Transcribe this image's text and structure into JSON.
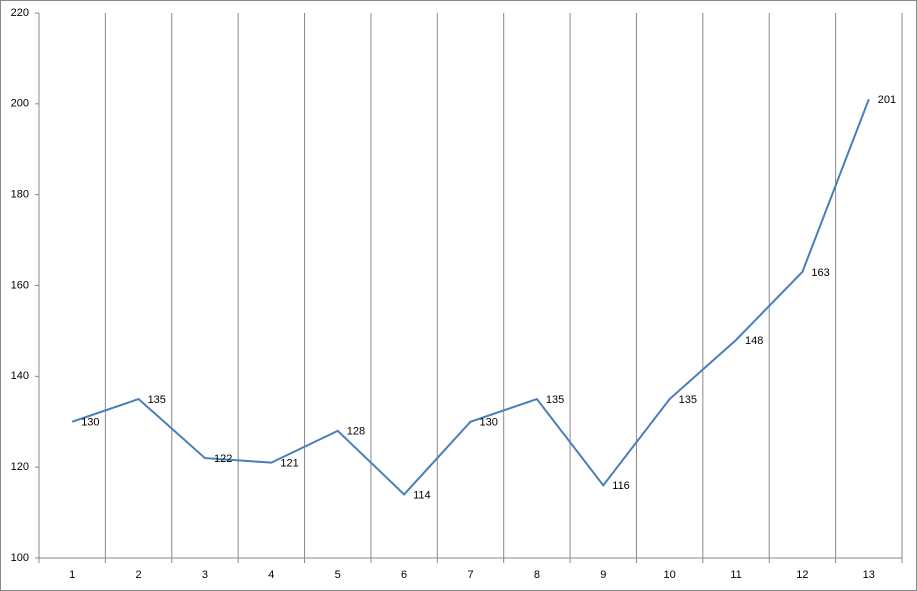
{
  "chart_data": {
    "type": "line",
    "categories": [
      "1",
      "2",
      "3",
      "4",
      "5",
      "6",
      "7",
      "8",
      "9",
      "10",
      "11",
      "12",
      "13"
    ],
    "series": [
      {
        "color": "#4a7ebb",
        "values": [
          130,
          135,
          122,
          121,
          128,
          114,
          130,
          135,
          116,
          135,
          148,
          163,
          201
        ]
      }
    ],
    "ylim": [
      100,
      220
    ],
    "yticks": [
      100,
      120,
      140,
      160,
      180,
      200,
      220
    ],
    "data_labels": true
  }
}
